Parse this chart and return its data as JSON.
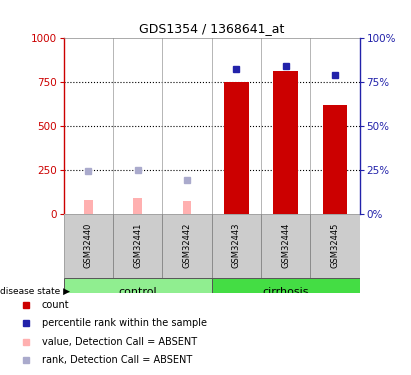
{
  "title": "GDS1354 / 1368641_at",
  "samples": [
    "GSM32440",
    "GSM32441",
    "GSM32442",
    "GSM32443",
    "GSM32444",
    "GSM32445"
  ],
  "red_bars": [
    null,
    null,
    null,
    750,
    810,
    615
  ],
  "pink_bars": [
    80,
    90,
    70,
    null,
    null,
    null
  ],
  "blue_squares_pct": [
    null,
    null,
    null,
    82,
    84,
    79
  ],
  "lavender_squares_pct": [
    24,
    25,
    19,
    null,
    null,
    null
  ],
  "left_ylim": [
    0,
    1000
  ],
  "right_ylim": [
    0,
    100
  ],
  "left_yticks": [
    0,
    250,
    500,
    750,
    1000
  ],
  "right_yticks": [
    0,
    25,
    50,
    75,
    100
  ],
  "left_yticklabels": [
    "0",
    "250",
    "500",
    "750",
    "1000"
  ],
  "right_yticklabels": [
    "0%",
    "25%",
    "50%",
    "75%",
    "100%"
  ],
  "control_label": "control",
  "cirrhosis_label": "cirrhosis",
  "control_color": "#90EE90",
  "cirrhosis_color": "#44DD44",
  "disease_state_label": "disease state",
  "red_color": "#CC0000",
  "blue_color": "#2222AA",
  "pink_color": "#FFB0B0",
  "lavender_color": "#AAAACC",
  "bar_width": 0.5,
  "pink_bar_width": 0.18,
  "sample_box_color": "#CCCCCC",
  "dotted_lines": [
    250,
    500,
    750
  ],
  "n_control": 3,
  "legend": [
    {
      "label": "count",
      "color": "#CC0000"
    },
    {
      "label": "percentile rank within the sample",
      "color": "#2222AA"
    },
    {
      "label": "value, Detection Call = ABSENT",
      "color": "#FFB0B0"
    },
    {
      "label": "rank, Detection Call = ABSENT",
      "color": "#AAAACC"
    }
  ]
}
